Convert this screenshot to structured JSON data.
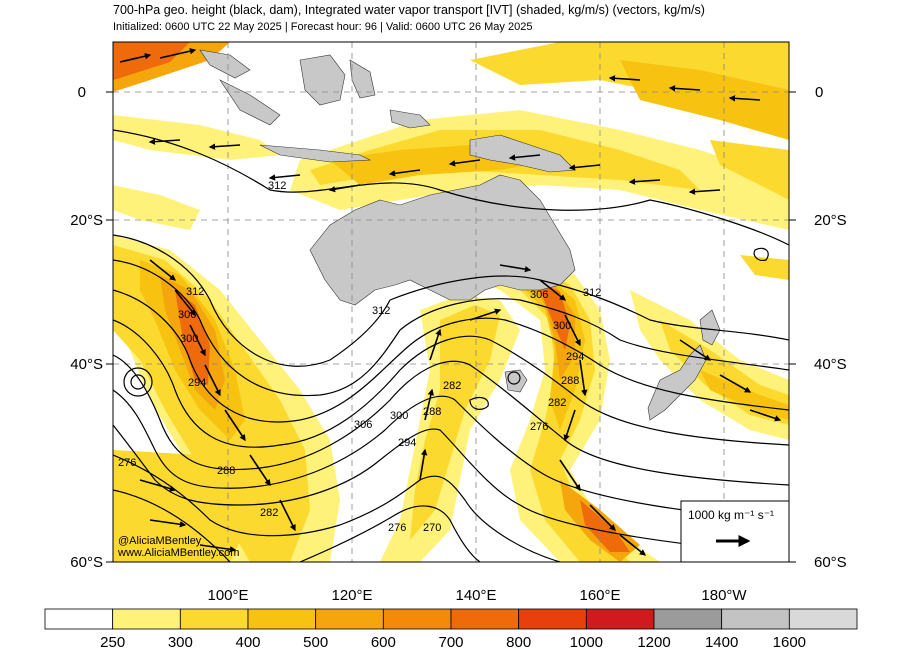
{
  "header": {
    "title": "700-hPa geo. height (black, dam), Integrated water vapor transport [IVT] (shaded, kg/m/s) (vectors, kg/m/s)",
    "subtitle": "Initialized: 0600 UTC 22 May 2025 | Forecast hour: 96 | Valid: 0600 UTC 26 May 2025"
  },
  "map": {
    "lat_labels_left": [
      "0",
      "20°S",
      "40°S",
      "60°S"
    ],
    "lat_labels_right": [
      "0",
      "20°S",
      "40°S",
      "60°S"
    ],
    "lon_labels": [
      "100°E",
      "120°E",
      "140°E",
      "160°E",
      "180°W"
    ],
    "land_color": "#c8c8c8",
    "contour_labels": [
      {
        "text": "312"
      },
      {
        "text": "312"
      },
      {
        "text": "312"
      },
      {
        "text": "312"
      },
      {
        "text": "306"
      },
      {
        "text": "300"
      },
      {
        "text": "294"
      },
      {
        "text": "306"
      },
      {
        "text": "300"
      },
      {
        "text": "294"
      },
      {
        "text": "288"
      },
      {
        "text": "282"
      },
      {
        "text": "306"
      },
      {
        "text": "300"
      },
      {
        "text": "294"
      },
      {
        "text": "288"
      },
      {
        "text": "282"
      },
      {
        "text": "276"
      },
      {
        "text": "276"
      },
      {
        "text": "288"
      },
      {
        "text": "282"
      },
      {
        "text": "276"
      },
      {
        "text": "270"
      }
    ],
    "credit_line1": "@AliciaMBentley",
    "credit_line2": "www.AliciaMBentley.com",
    "reference_vector": {
      "label": "1000 kg m⁻¹ s⁻¹"
    }
  },
  "colorbar": {
    "ticks": [
      "250",
      "300",
      "400",
      "500",
      "600",
      "700",
      "800",
      "1000",
      "1200",
      "1400",
      "1600"
    ],
    "colors": [
      "#ffffff",
      "#fff27a",
      "#fbd92e",
      "#f8c211",
      "#f5a60d",
      "#f38a0a",
      "#ef6a0a",
      "#e8400c",
      "#d11a1d",
      "#9b9b9b",
      "#c3c3c3",
      "#d9d9d9"
    ]
  }
}
